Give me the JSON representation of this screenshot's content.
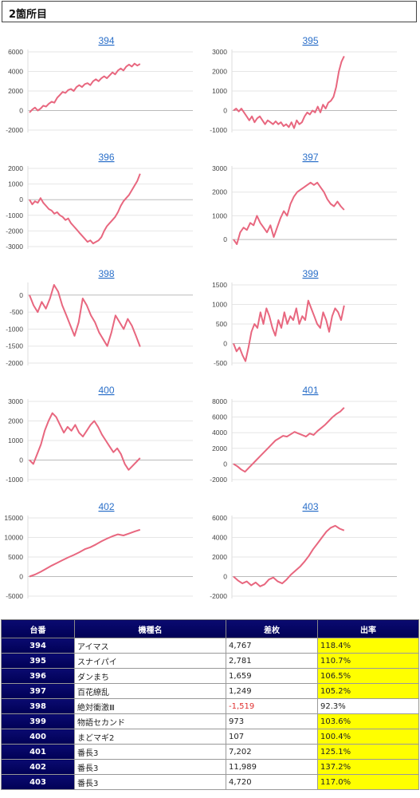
{
  "header": {
    "title": "2箇所目"
  },
  "colors": {
    "line": "#e8677f",
    "link": "#2a6fc9",
    "highlight": "#ffff00",
    "table_header": "#000060",
    "negative": "#e03030"
  },
  "chart_data": [
    {
      "type": "line",
      "title": "394",
      "yticks": [
        6000,
        4000,
        2000,
        0,
        -2000
      ],
      "ylim": [
        -2000,
        6000
      ],
      "y": [
        -200,
        100,
        300,
        0,
        200,
        500,
        400,
        700,
        900,
        800,
        1300,
        1600,
        1900,
        1800,
        2100,
        2200,
        2000,
        2400,
        2600,
        2400,
        2700,
        2800,
        2600,
        3000,
        3200,
        3000,
        3300,
        3500,
        3300,
        3600,
        3900,
        3700,
        4100,
        4300,
        4100,
        4500,
        4700,
        4500,
        4800,
        4600,
        4767
      ]
    },
    {
      "type": "line",
      "title": "395",
      "yticks": [
        3000,
        2000,
        1000,
        0,
        -1000
      ],
      "ylim": [
        -1000,
        3000
      ],
      "y": [
        0,
        100,
        -50,
        100,
        -100,
        -300,
        -500,
        -300,
        -600,
        -400,
        -300,
        -500,
        -700,
        -500,
        -600,
        -700,
        -550,
        -700,
        -600,
        -800,
        -700,
        -850,
        -600,
        -900,
        -500,
        -700,
        -600,
        -300,
        -100,
        -200,
        0,
        -100,
        200,
        -100,
        300,
        100,
        400,
        500,
        700,
        1200,
        2000,
        2500,
        2781
      ]
    },
    {
      "type": "line",
      "title": "396",
      "yticks": [
        2000,
        1000,
        0,
        -1000,
        -2000,
        -3000
      ],
      "ylim": [
        -3000,
        2000
      ],
      "y": [
        0,
        -300,
        -100,
        -200,
        100,
        -200,
        -400,
        -600,
        -700,
        -900,
        -800,
        -1000,
        -1100,
        -1300,
        -1200,
        -1500,
        -1700,
        -1900,
        -2100,
        -2300,
        -2500,
        -2700,
        -2600,
        -2800,
        -2700,
        -2600,
        -2400,
        -2000,
        -1700,
        -1500,
        -1300,
        -1100,
        -800,
        -400,
        -100,
        100,
        300,
        600,
        900,
        1200,
        1659
      ]
    },
    {
      "type": "line",
      "title": "397",
      "yticks": [
        3000,
        2000,
        1000,
        0
      ],
      "ylim": [
        -300,
        3000
      ],
      "y": [
        0,
        -200,
        300,
        500,
        400,
        700,
        600,
        1000,
        700,
        500,
        300,
        600,
        100,
        500,
        900,
        1200,
        1000,
        1500,
        1800,
        2000,
        2100,
        2200,
        2300,
        2400,
        2300,
        2400,
        2200,
        2000,
        1700,
        1500,
        1400,
        1600,
        1400,
        1249
      ]
    },
    {
      "type": "line",
      "title": "398",
      "yticks": [
        0,
        -500,
        -1000,
        -1500,
        -2000
      ],
      "ylim": [
        -2000,
        300
      ],
      "y": [
        0,
        -300,
        -500,
        -200,
        -400,
        -100,
        300,
        100,
        -300,
        -600,
        -900,
        -1200,
        -800,
        -100,
        -300,
        -600,
        -800,
        -1100,
        -1300,
        -1500,
        -1100,
        -600,
        -800,
        -1000,
        -700,
        -900,
        -1200,
        -1519
      ]
    },
    {
      "type": "line",
      "title": "399",
      "yticks": [
        1500,
        1000,
        500,
        0,
        -500
      ],
      "ylim": [
        -500,
        1500
      ],
      "y": [
        0,
        -200,
        -100,
        -300,
        -450,
        -100,
        300,
        500,
        400,
        800,
        500,
        900,
        700,
        400,
        200,
        600,
        400,
        800,
        500,
        700,
        600,
        900,
        500,
        700,
        600,
        1100,
        900,
        700,
        500,
        400,
        800,
        600,
        300,
        700,
        900,
        800,
        600,
        973
      ]
    },
    {
      "type": "line",
      "title": "400",
      "yticks": [
        3000,
        2000,
        1000,
        0,
        -1000
      ],
      "ylim": [
        -1000,
        3000
      ],
      "y": [
        0,
        -200,
        300,
        800,
        1500,
        2000,
        2400,
        2200,
        1800,
        1400,
        1700,
        1500,
        1800,
        1400,
        1200,
        1500,
        1800,
        2000,
        1700,
        1300,
        1000,
        700,
        400,
        600,
        300,
        -200,
        -500,
        -300,
        -100,
        107
      ]
    },
    {
      "type": "line",
      "title": "401",
      "yticks": [
        8000,
        6000,
        4000,
        2000,
        0,
        -2000
      ],
      "ylim": [
        -2000,
        8000
      ],
      "y": [
        0,
        -300,
        -700,
        -1000,
        -500,
        0,
        500,
        1000,
        1500,
        2000,
        2500,
        3000,
        3300,
        3600,
        3500,
        3800,
        4100,
        3900,
        3700,
        3500,
        3900,
        3700,
        4200,
        4600,
        5000,
        5500,
        6000,
        6400,
        6700,
        7202
      ]
    },
    {
      "type": "line",
      "title": "402",
      "yticks": [
        15000,
        10000,
        5000,
        0,
        -5000
      ],
      "ylim": [
        -5000,
        15000
      ],
      "y": [
        0,
        500,
        1200,
        2000,
        2800,
        3500,
        4200,
        4900,
        5500,
        6200,
        7000,
        7500,
        8200,
        9000,
        9700,
        10300,
        10800,
        10500,
        11000,
        11500,
        11989
      ]
    },
    {
      "type": "line",
      "title": "403",
      "yticks": [
        6000,
        4000,
        2000,
        0,
        -2000
      ],
      "ylim": [
        -2000,
        6000
      ],
      "y": [
        0,
        -400,
        -700,
        -500,
        -900,
        -600,
        -1000,
        -800,
        -300,
        -100,
        -500,
        -700,
        -300,
        200,
        600,
        1000,
        1500,
        2100,
        2800,
        3400,
        4000,
        4600,
        5000,
        5200,
        4900,
        4720
      ]
    }
  ],
  "table": {
    "headers": [
      "台番",
      "機種名",
      "差枚",
      "出率"
    ],
    "rows": [
      {
        "num": "394",
        "model": "アイマス",
        "diff": "4,767",
        "rate": "118.4%",
        "hl": true,
        "neg": false
      },
      {
        "num": "395",
        "model": "スナイパイ",
        "diff": "2,781",
        "rate": "110.7%",
        "hl": true,
        "neg": false
      },
      {
        "num": "396",
        "model": "ダンまち",
        "diff": "1,659",
        "rate": "106.5%",
        "hl": true,
        "neg": false
      },
      {
        "num": "397",
        "model": "百花繚乱",
        "diff": "1,249",
        "rate": "105.2%",
        "hl": true,
        "neg": false
      },
      {
        "num": "398",
        "model": "絶対衝激Ⅲ",
        "diff": "-1,519",
        "rate": "92.3%",
        "hl": false,
        "neg": true
      },
      {
        "num": "399",
        "model": "物語セカンド",
        "diff": "973",
        "rate": "103.6%",
        "hl": true,
        "neg": false
      },
      {
        "num": "400",
        "model": "まどマギ2",
        "diff": "107",
        "rate": "100.4%",
        "hl": true,
        "neg": false
      },
      {
        "num": "401",
        "model": "番長3",
        "diff": "7,202",
        "rate": "125.1%",
        "hl": true,
        "neg": false
      },
      {
        "num": "402",
        "model": "番長3",
        "diff": "11,989",
        "rate": "137.2%",
        "hl": true,
        "neg": false
      },
      {
        "num": "403",
        "model": "番長3",
        "diff": "4,720",
        "rate": "117.0%",
        "hl": true,
        "neg": false
      }
    ]
  }
}
